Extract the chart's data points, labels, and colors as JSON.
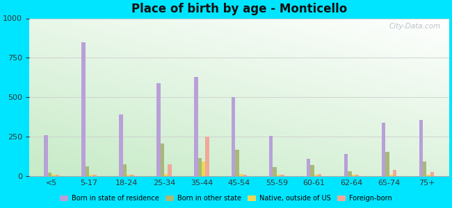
{
  "title": "Place of birth by age - Monticello",
  "categories": [
    "<5",
    "5-17",
    "18-24",
    "25-34",
    "35-44",
    "45-54",
    "55-59",
    "60-61",
    "62-64",
    "65-74",
    "75+"
  ],
  "series": {
    "Born in state of residence": [
      260,
      850,
      390,
      590,
      630,
      500,
      255,
      110,
      140,
      340,
      355
    ],
    "Born in other state": [
      20,
      60,
      75,
      205,
      115,
      165,
      55,
      70,
      30,
      155,
      90
    ],
    "Native, outside of US": [
      10,
      10,
      10,
      15,
      90,
      15,
      10,
      10,
      10,
      10,
      10
    ],
    "Foreign-born": [
      10,
      10,
      10,
      75,
      250,
      10,
      10,
      15,
      10,
      40,
      25
    ]
  },
  "colors": {
    "Born in state of residence": "#b8a0d8",
    "Born in other state": "#a8b878",
    "Native, outside of US": "#e8d858",
    "Foreign-born": "#f0a898"
  },
  "ylim": [
    0,
    1000
  ],
  "yticks": [
    0,
    250,
    500,
    750,
    1000
  ],
  "outer_background": "#00e5ff",
  "bar_width": 0.1,
  "grid_color": "#cccccc",
  "watermark": "City-Data.com"
}
